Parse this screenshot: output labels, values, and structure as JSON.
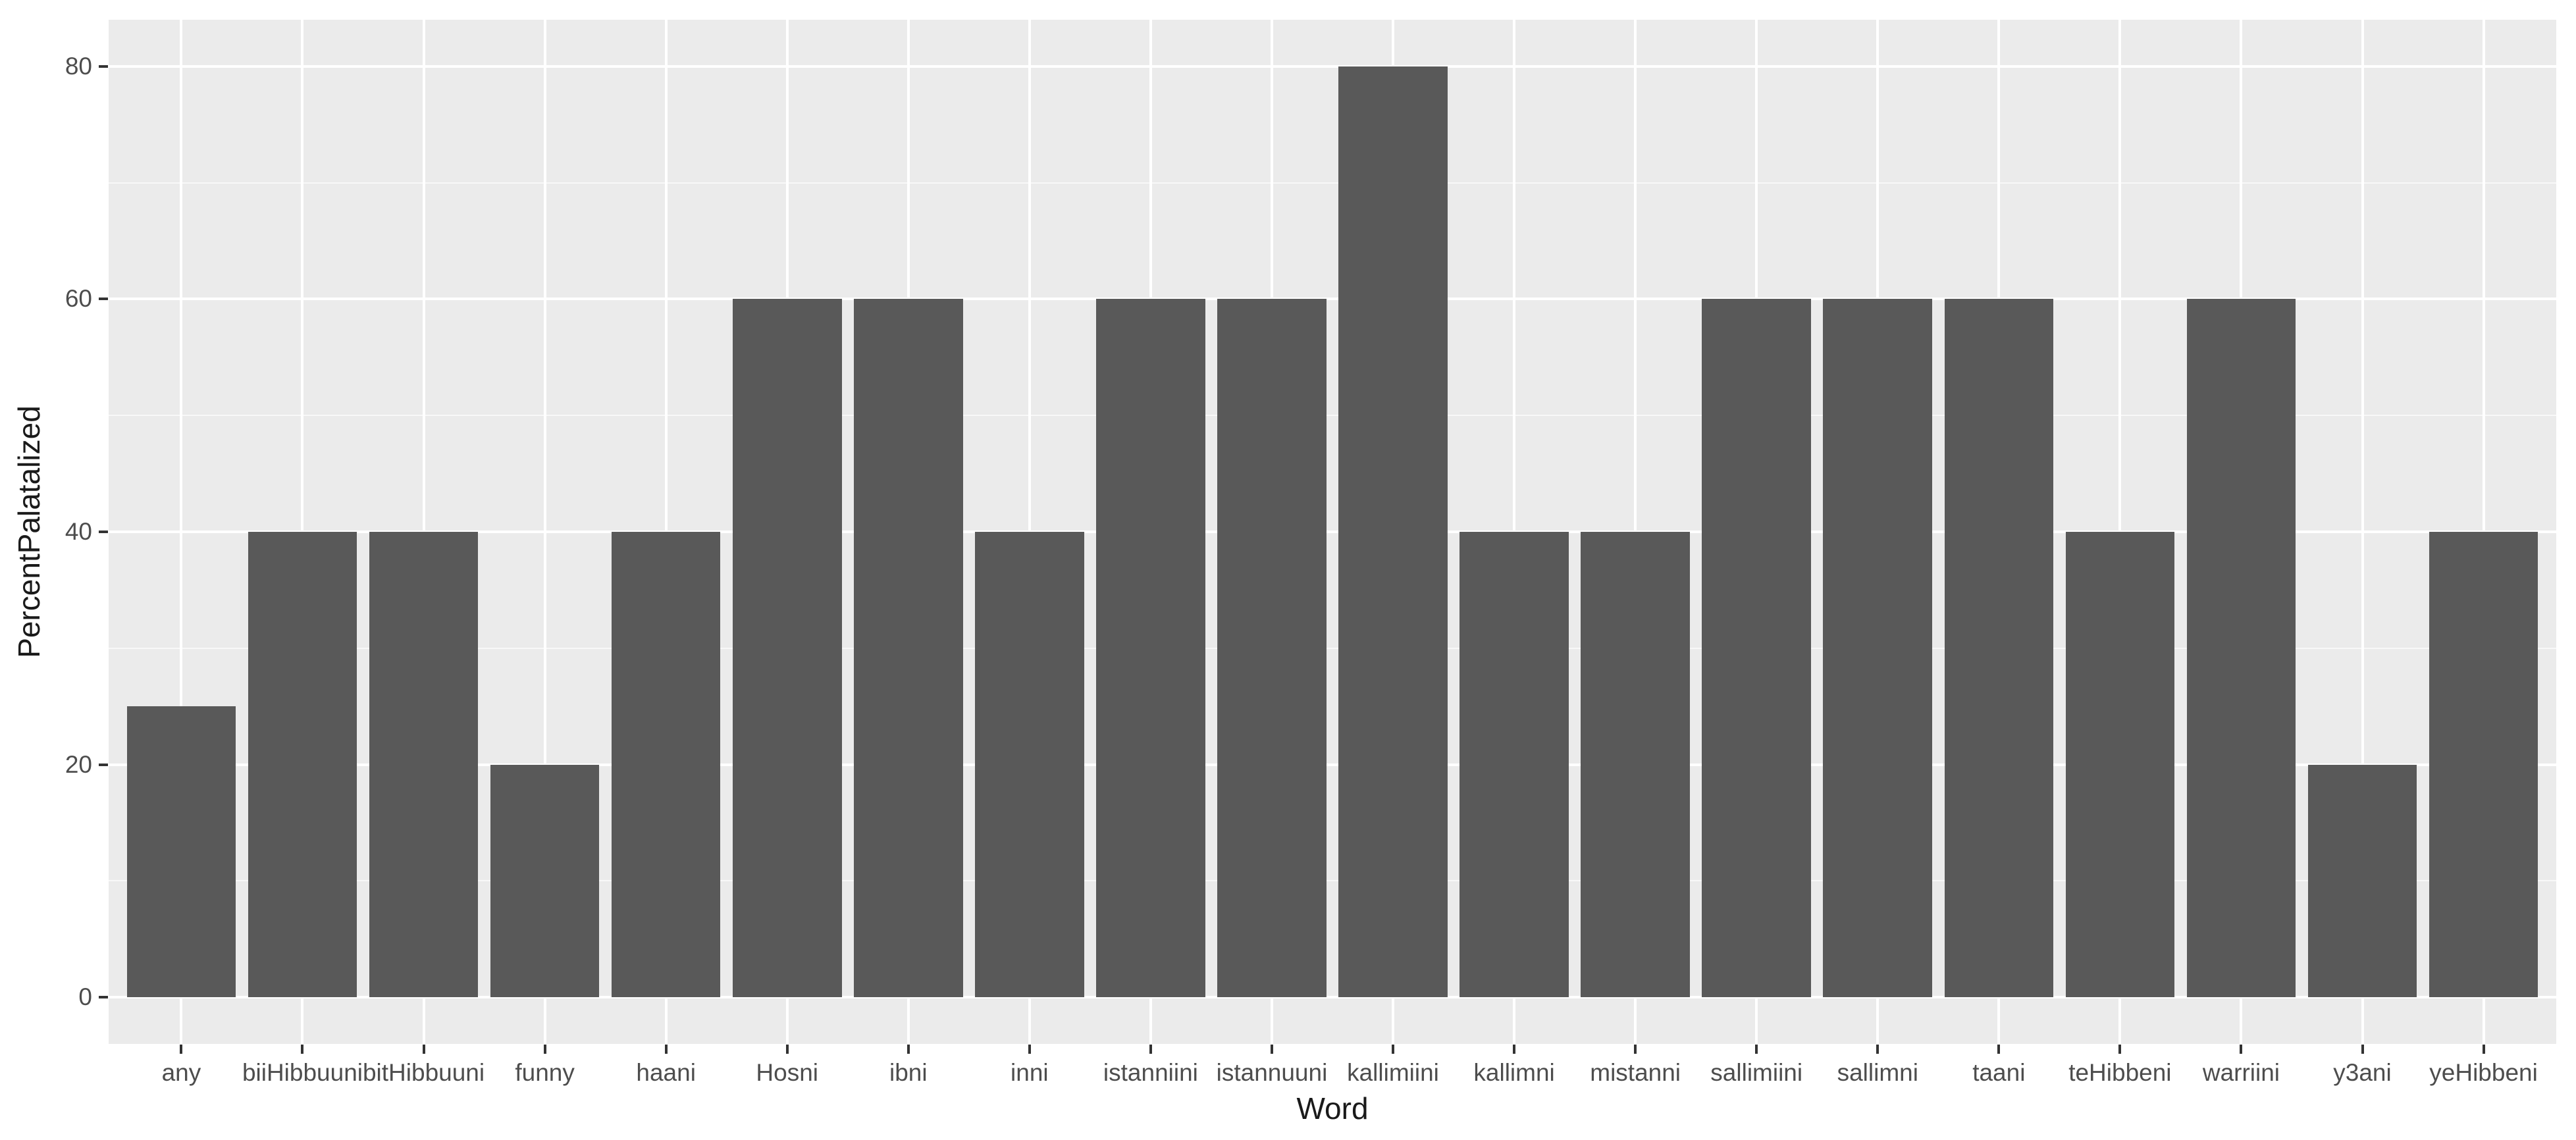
{
  "chart_data": {
    "type": "bar",
    "title": "",
    "xlabel": "Word",
    "ylabel": "PercentPalatalized",
    "categories": [
      "any",
      "biiHibbuuni",
      "bitHibbuuni",
      "funny",
      "haani",
      "Hosni",
      "ibni",
      "inni",
      "istanniini",
      "istannuuni",
      "kallimiini",
      "kallimni",
      "mistanni",
      "sallimiini",
      "sallimni",
      "taani",
      "teHibbeni",
      "warriini",
      "y3ani",
      "yeHibbeni"
    ],
    "values": [
      25,
      40,
      40,
      20,
      40,
      60,
      60,
      40,
      60,
      60,
      80,
      40,
      40,
      60,
      60,
      60,
      40,
      60,
      20,
      40
    ],
    "y_tick_labels": [
      "0",
      "20",
      "40",
      "60",
      "80"
    ],
    "y_ticks": [
      0,
      20,
      40,
      60,
      80
    ],
    "y_minor_ticks": [
      10,
      30,
      50,
      70
    ],
    "ylim": [
      0,
      80
    ],
    "grid": "major and minor horizontal white gridlines, major vertical gridline per category",
    "legend": "none",
    "colors": {
      "bar": "#595959",
      "panel_bg": "#EBEBEB",
      "grid_major": "#FFFFFF",
      "grid_minor": "#FFFFFF",
      "tick_label": "#4D4D4D",
      "axis_title": "#1A1A1A",
      "tick_mark": "#333333",
      "page_bg": "#FFFFFF"
    }
  }
}
